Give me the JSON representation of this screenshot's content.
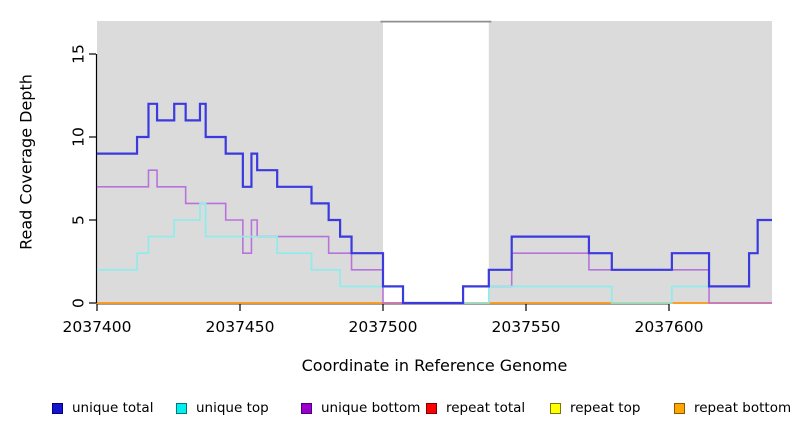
{
  "figure": {
    "background": "#ffffff",
    "panel_color": "#dbdbdb",
    "gap_band_color": "#ffffff",
    "gap_band_border_color": "#8f8f8f",
    "axis_color": "#000000",
    "tick_font_size": 15.5
  },
  "chart_data": {
    "type": "line",
    "subtype": "step",
    "title": "",
    "xlabel": "Coordinate in Reference Genome",
    "ylabel": "Read Coverage Depth",
    "xlim": [
      2037400,
      2037636
    ],
    "ylim": [
      0,
      17
    ],
    "x_ticks": [
      2037400,
      2037450,
      2037500,
      2037550,
      2037600
    ],
    "y_ticks": [
      0,
      5,
      10,
      15
    ],
    "grid": false,
    "legend_position": "bottom",
    "gap_region": {
      "x_start": 2037500,
      "x_end": 2037537
    },
    "series": [
      {
        "name": "repeat total",
        "color": "#dd0000",
        "width": 1.4,
        "steps": [
          [
            2037400,
            0
          ]
        ]
      },
      {
        "name": "repeat top",
        "color": "#f2f200",
        "width": 1.4,
        "steps": [
          [
            2037400,
            0
          ]
        ]
      },
      {
        "name": "repeat bottom",
        "color": "#ff9d26",
        "width": 1.8,
        "steps": [
          [
            2037400,
            0
          ]
        ]
      },
      {
        "name": "unique bottom",
        "color": "#b873db",
        "width": 1.6,
        "steps": [
          [
            2037400,
            7
          ],
          [
            2037418,
            8
          ],
          [
            2037421,
            7
          ],
          [
            2037431,
            6
          ],
          [
            2037445,
            5
          ],
          [
            2037451,
            3
          ],
          [
            2037454,
            5
          ],
          [
            2037456,
            4
          ],
          [
            2037481,
            3
          ],
          [
            2037489,
            2
          ],
          [
            2037500,
            0
          ],
          [
            2037528,
            1
          ],
          [
            2037545,
            3
          ],
          [
            2037572,
            2
          ],
          [
            2037614,
            0
          ]
        ]
      },
      {
        "name": "unique top",
        "color": "#8bedec",
        "width": 1.6,
        "steps": [
          [
            2037400,
            2
          ],
          [
            2037414,
            3
          ],
          [
            2037418,
            4
          ],
          [
            2037427,
            5
          ],
          [
            2037436,
            6
          ],
          [
            2037438,
            4
          ],
          [
            2037463,
            3
          ],
          [
            2037475,
            2
          ],
          [
            2037485,
            1
          ],
          [
            2037507,
            0
          ],
          [
            2037537,
            1
          ],
          [
            2037580,
            0
          ],
          [
            2037601,
            1
          ],
          [
            2037628,
            3
          ],
          [
            2037631,
            5
          ]
        ]
      },
      {
        "name": "unique total",
        "color": "#3a3adf",
        "width": 2.2,
        "steps": [
          [
            2037400,
            9
          ],
          [
            2037414,
            10
          ],
          [
            2037418,
            12
          ],
          [
            2037421,
            11
          ],
          [
            2037427,
            12
          ],
          [
            2037431,
            11
          ],
          [
            2037436,
            12
          ],
          [
            2037438,
            10
          ],
          [
            2037445,
            9
          ],
          [
            2037451,
            7
          ],
          [
            2037454,
            9
          ],
          [
            2037456,
            8
          ],
          [
            2037463,
            7
          ],
          [
            2037475,
            6
          ],
          [
            2037481,
            5
          ],
          [
            2037485,
            4
          ],
          [
            2037489,
            3
          ],
          [
            2037500,
            1
          ],
          [
            2037507,
            0
          ],
          [
            2037528,
            1
          ],
          [
            2037537,
            2
          ],
          [
            2037545,
            4
          ],
          [
            2037572,
            3
          ],
          [
            2037580,
            2
          ],
          [
            2037601,
            3
          ],
          [
            2037614,
            1
          ],
          [
            2037628,
            3
          ],
          [
            2037631,
            5
          ]
        ]
      }
    ]
  },
  "legend": {
    "items": [
      {
        "label": "unique total",
        "fill": "#1414cc",
        "border": "#000080"
      },
      {
        "label": "unique top",
        "fill": "#00f0f0",
        "border": "#007878"
      },
      {
        "label": "unique bottom",
        "fill": "#9900cc",
        "border": "#4b0082"
      },
      {
        "label": "repeat total",
        "fill": "#ff0000",
        "border": "#7a0000"
      },
      {
        "label": "repeat top",
        "fill": "#ffff00",
        "border": "#7a7a00"
      },
      {
        "label": "repeat bottom",
        "fill": "#ffa500",
        "border": "#8a5a00"
      }
    ]
  }
}
